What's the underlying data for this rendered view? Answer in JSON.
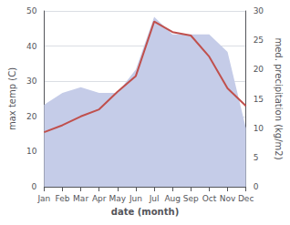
{
  "chart_data": {
    "type": "line",
    "categories": [
      "Jan",
      "Feb",
      "Mar",
      "Apr",
      "May",
      "Jun",
      "Jul",
      "Aug",
      "Sep",
      "Oct",
      "Nov",
      "Dec"
    ],
    "series": [
      {
        "type": "area",
        "color": "#c5cce8",
        "axis": "y2",
        "values": [
          14,
          16,
          17,
          16,
          16,
          20,
          29,
          26,
          26,
          26,
          23,
          10
        ]
      },
      {
        "type": "line",
        "color": "#c0504d",
        "values": [
          15.5,
          17.5,
          20.0,
          22.0,
          27.0,
          31.5,
          47.0,
          44.0,
          43.0,
          37.0,
          28.0,
          23.0
        ]
      }
    ],
    "xlabel": "date (month)",
    "ylabel": "max temp (C)",
    "y2label": "med. precipitation (kg/m2)",
    "ylim": [
      0,
      50
    ],
    "yticks": [
      0,
      10,
      20,
      30,
      40,
      50
    ],
    "y2lim": [
      0,
      30
    ],
    "y2ticks": [
      0,
      5,
      10,
      15,
      20,
      25,
      30
    ],
    "grid": true
  }
}
